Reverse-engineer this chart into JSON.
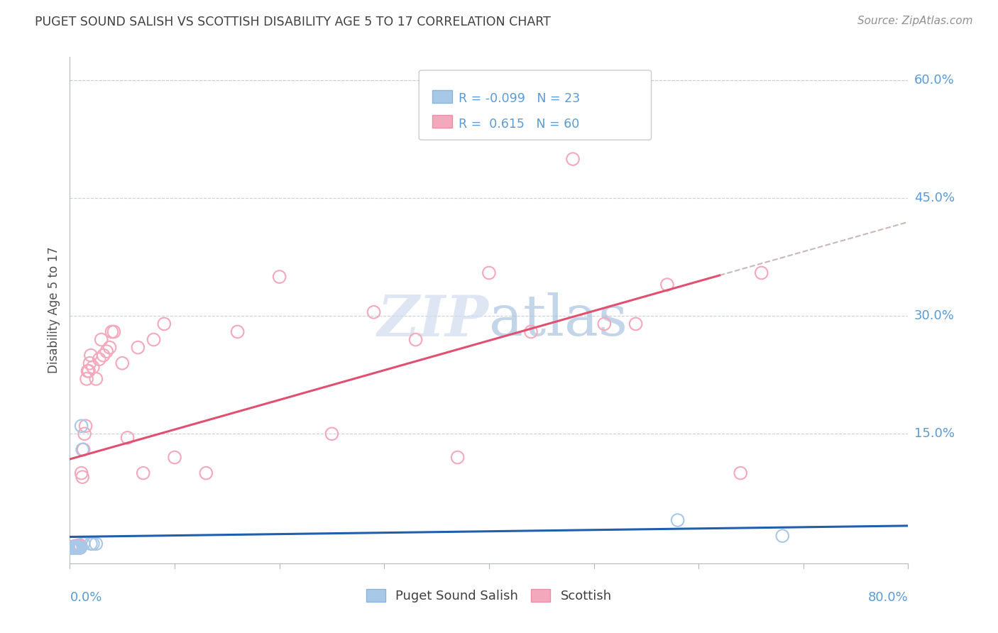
{
  "title": "PUGET SOUND SALISH VS SCOTTISH DISABILITY AGE 5 TO 17 CORRELATION CHART",
  "source": "Source: ZipAtlas.com",
  "ylabel": "Disability Age 5 to 17",
  "xlim": [
    0.0,
    0.8
  ],
  "ylim": [
    -0.015,
    0.63
  ],
  "color_blue": "#A8C8E8",
  "color_pink": "#F4A8BC",
  "color_blue_line": "#1F5FAD",
  "color_pink_line": "#E05070",
  "color_dash": "#C8B8B8",
  "title_color": "#404040",
  "source_color": "#909090",
  "axis_label_color": "#5B9BD5",
  "watermark_color": "#C8D8EC",
  "blue_scatter_x": [
    0.001,
    0.002,
    0.003,
    0.003,
    0.004,
    0.004,
    0.005,
    0.005,
    0.006,
    0.006,
    0.007,
    0.007,
    0.008,
    0.008,
    0.009,
    0.01,
    0.011,
    0.012,
    0.013,
    0.02,
    0.022,
    0.025,
    0.58,
    0.68
  ],
  "blue_scatter_y": [
    0.005,
    0.005,
    0.005,
    0.006,
    0.005,
    0.006,
    0.005,
    0.006,
    0.005,
    0.006,
    0.005,
    0.006,
    0.005,
    0.006,
    0.005,
    0.005,
    0.16,
    0.13,
    0.01,
    0.01,
    0.01,
    0.01,
    0.04,
    0.02
  ],
  "pink_scatter_x": [
    0.001,
    0.002,
    0.002,
    0.003,
    0.003,
    0.004,
    0.004,
    0.005,
    0.005,
    0.006,
    0.006,
    0.007,
    0.007,
    0.008,
    0.008,
    0.009,
    0.009,
    0.01,
    0.01,
    0.011,
    0.012,
    0.013,
    0.014,
    0.015,
    0.016,
    0.017,
    0.018,
    0.019,
    0.02,
    0.022,
    0.025,
    0.028,
    0.03,
    0.032,
    0.035,
    0.038,
    0.04,
    0.042,
    0.05,
    0.055,
    0.065,
    0.07,
    0.08,
    0.09,
    0.1,
    0.13,
    0.16,
    0.2,
    0.25,
    0.29,
    0.33,
    0.37,
    0.4,
    0.44,
    0.48,
    0.51,
    0.54,
    0.57,
    0.64,
    0.66
  ],
  "pink_scatter_y": [
    0.005,
    0.005,
    0.006,
    0.005,
    0.006,
    0.005,
    0.006,
    0.005,
    0.007,
    0.005,
    0.006,
    0.005,
    0.007,
    0.005,
    0.008,
    0.005,
    0.008,
    0.005,
    0.008,
    0.1,
    0.095,
    0.13,
    0.15,
    0.16,
    0.22,
    0.23,
    0.23,
    0.24,
    0.25,
    0.235,
    0.22,
    0.245,
    0.27,
    0.25,
    0.255,
    0.26,
    0.28,
    0.28,
    0.24,
    0.145,
    0.26,
    0.1,
    0.27,
    0.29,
    0.12,
    0.1,
    0.28,
    0.35,
    0.15,
    0.305,
    0.27,
    0.12,
    0.355,
    0.28,
    0.5,
    0.29,
    0.29,
    0.34,
    0.1,
    0.355
  ]
}
